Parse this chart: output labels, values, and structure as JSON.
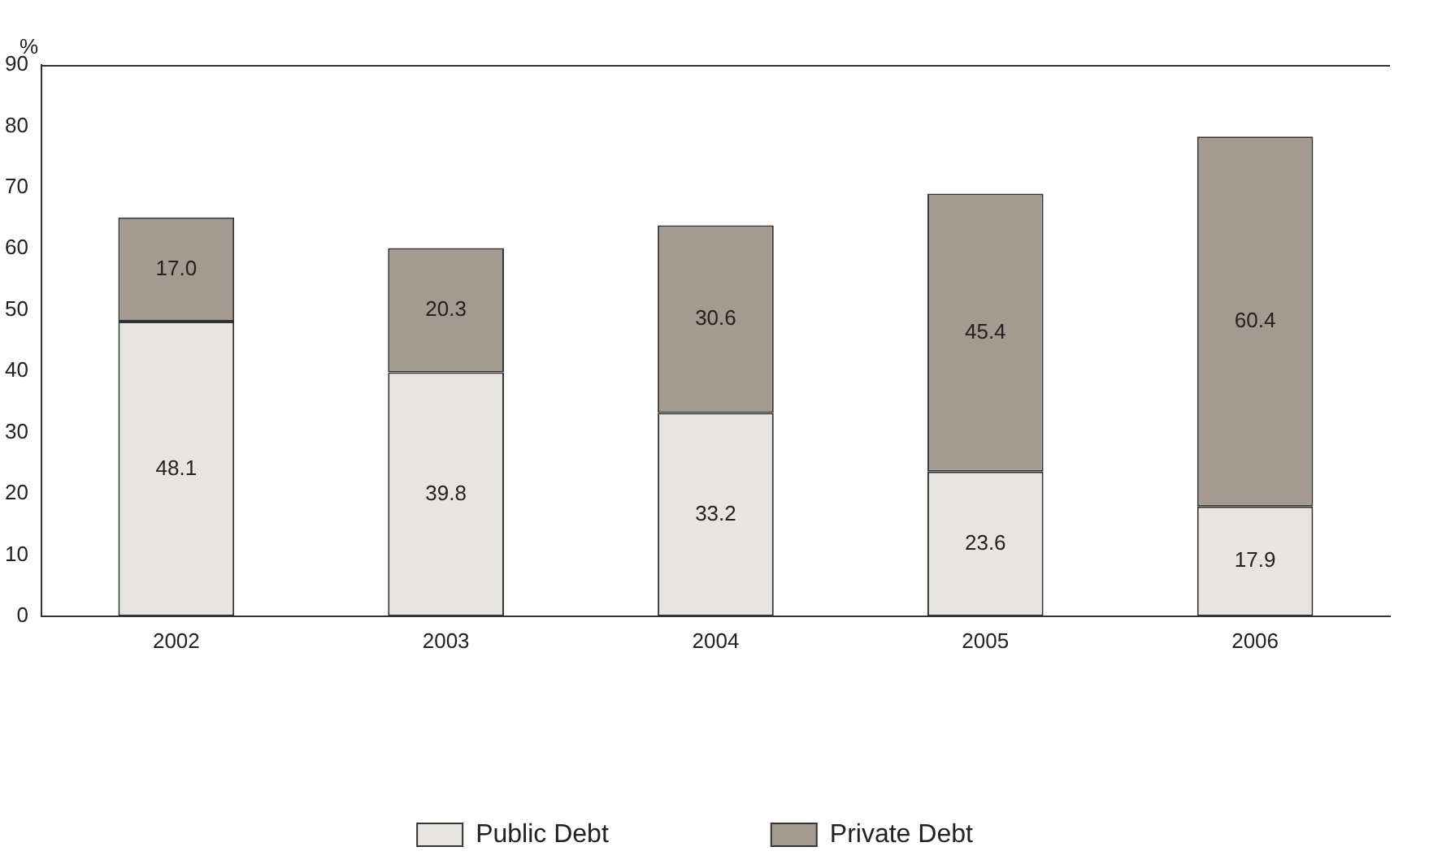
{
  "chart_data": {
    "type": "bar",
    "stacked": true,
    "ylabel": "%",
    "categories": [
      "2002",
      "2003",
      "2004",
      "2005",
      "2006"
    ],
    "series": [
      {
        "name": "Public Debt",
        "color": "#e8e4df",
        "values": [
          48.1,
          39.8,
          33.2,
          23.6,
          17.9
        ],
        "value_labels": [
          "48.1",
          "39.8",
          "33.2",
          "23.6",
          "17.9"
        ]
      },
      {
        "name": "Private Debt",
        "color": "#a59a8f",
        "values": [
          17.0,
          20.3,
          30.6,
          45.4,
          60.4
        ],
        "value_labels": [
          "17.0",
          "20.3",
          "30.6",
          "45.4",
          "60.4"
        ]
      }
    ],
    "ylim": [
      0,
      90
    ],
    "yticks": [
      0,
      10,
      20,
      30,
      40,
      50,
      60,
      70,
      80,
      90
    ],
    "grid": false,
    "legend": "bottom"
  }
}
